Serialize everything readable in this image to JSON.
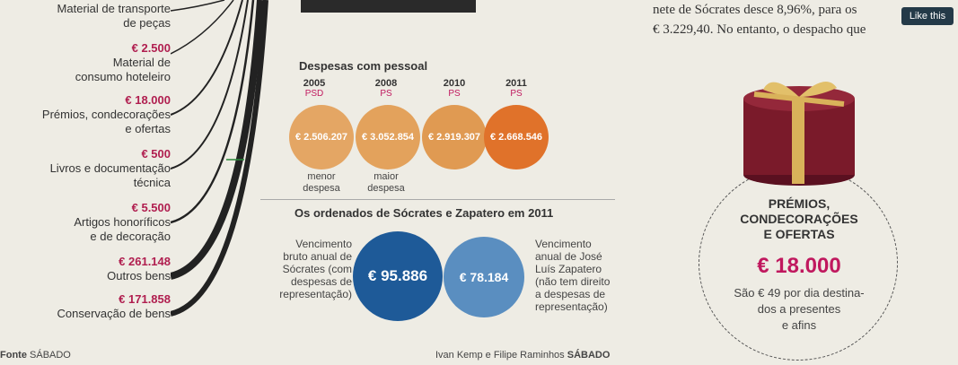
{
  "left_items": [
    {
      "amount": "",
      "label": "Material de transporte de peças"
    },
    {
      "amount": "€ 2.500",
      "label": "Material de consumo hoteleiro"
    },
    {
      "amount": "€ 18.000",
      "label": "Prémios, condecorações e ofertas"
    },
    {
      "amount": "€ 500",
      "label": "Livros e documentação técnica"
    },
    {
      "amount": "€ 5.500",
      "label": "Artigos honoríficos e de decoração"
    },
    {
      "amount": "€ 261.148",
      "label": "Outros bens"
    },
    {
      "amount": "€ 171.858",
      "label": "Conservação de bens"
    }
  ],
  "left_lines": {
    "line1": "Material de transporte",
    "line2": "de peças",
    "line3": "Material de",
    "line4": "consumo hoteleiro",
    "line5": "Prémios, condecorações",
    "line6": "e ofertas",
    "line7": "Livros e documentação",
    "line8": "técnica",
    "line9": "Artigos honoríficos",
    "line10": "e de decoração",
    "line11": "Outros bens",
    "line12": "Conservação de bens"
  },
  "personnel": {
    "title": "Despesas com pessoal",
    "entries": [
      {
        "year": "2005",
        "party": "PSD",
        "value": "€ 2.506.207",
        "note1": "menor",
        "note2": "despesa"
      },
      {
        "year": "2008",
        "party": "PS",
        "value": "€ 3.052.854",
        "note1": "maior",
        "note2": "despesa"
      },
      {
        "year": "2010",
        "party": "PS",
        "value": "€ 2.919.307",
        "note1": "",
        "note2": ""
      },
      {
        "year": "2011",
        "party": "PS",
        "value": "€ 2.668.546",
        "note1": "",
        "note2": ""
      }
    ],
    "colors": [
      "#e4a664",
      "#e3a25c",
      "#e09a52",
      "#e0722a"
    ]
  },
  "salaries": {
    "title": "Os ordenados de Sócrates e Zapatero em 2011",
    "socrates_value": "€ 95.886",
    "zapatero_value": "€ 78.184",
    "socrates_desc": [
      "Vencimento",
      "bruto anual de",
      "Sócrates (com",
      "despesas de",
      "representação)"
    ],
    "zapatero_desc": [
      "Vencimento",
      "anual de José",
      "Luís Zapatero",
      "(não tem direito",
      "a despesas de",
      "representação)"
    ],
    "colors": [
      "#1e5a98",
      "#5a8ec0"
    ]
  },
  "gift": {
    "title1": "PRÉMIOS,",
    "title2": "CONDECORAÇÕES",
    "title3": "E OFERTAS",
    "amount": "€ 18.000",
    "desc1": "São € 49 por dia destina-",
    "desc2": "dos a presentes",
    "desc3": "e afins"
  },
  "top_text": {
    "line1": "nete de Sócrates desce 8,96%, para os",
    "line2": "€ 3.229,40. No entanto, o despacho que"
  },
  "footer": {
    "source_label": "Fonte",
    "source": "SÁBADO",
    "credit": "Ivan Kemp e Filipe Raminhos",
    "credit_brand": "SÁBADO"
  },
  "like_button": "Like this"
}
